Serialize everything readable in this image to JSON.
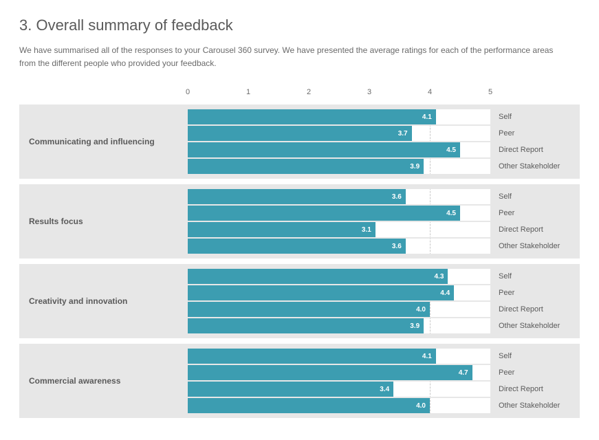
{
  "title": "3. Overall summary of feedback",
  "intro": "We have summarised all of the responses to your Carousel 360 survey. We have presented the average ratings for each of the performance areas from the different people who provided your feedback.",
  "chart": {
    "type": "bar",
    "scale_min": 0,
    "scale_max": 5,
    "ticks": [
      0,
      1,
      2,
      3,
      4,
      5
    ],
    "bar_color": "#3c9db1",
    "grid_color": "#c9c9c9",
    "group_bg": "#e7e7e7",
    "track_bg": "#ffffff",
    "value_text_color": "#ffffff",
    "label_color": "#5a5a5a",
    "rater_labels": [
      "Self",
      "Peer",
      "Direct Report",
      "Other Stakeholder"
    ],
    "groups": [
      {
        "name": "Communicating and influencing",
        "values": [
          4.1,
          3.7,
          4.5,
          3.9
        ]
      },
      {
        "name": "Results focus",
        "values": [
          3.6,
          4.5,
          3.1,
          3.6
        ]
      },
      {
        "name": "Creativity and innovation",
        "values": [
          4.3,
          4.4,
          4.0,
          3.9
        ]
      },
      {
        "name": "Commercial awareness",
        "values": [
          4.1,
          4.7,
          3.4,
          4.0
        ]
      }
    ]
  }
}
